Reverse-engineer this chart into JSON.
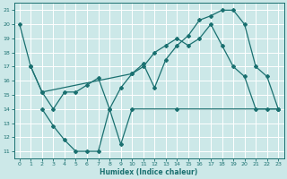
{
  "xlabel": "Humidex (Indice chaleur)",
  "bg_color": "#cce8e8",
  "grid_color": "#aacccc",
  "line_color": "#1a7070",
  "xlim": [
    -0.5,
    23.5
  ],
  "ylim": [
    10.5,
    21.5
  ],
  "xticks": [
    0,
    1,
    2,
    3,
    4,
    5,
    6,
    7,
    8,
    9,
    10,
    11,
    12,
    13,
    14,
    15,
    16,
    17,
    18,
    19,
    20,
    21,
    22,
    23
  ],
  "yticks": [
    11,
    12,
    13,
    14,
    15,
    16,
    17,
    18,
    19,
    20,
    21
  ],
  "line1_x": [
    0,
    1,
    2,
    10,
    11,
    12,
    13,
    14,
    15,
    16,
    17,
    18,
    19,
    20,
    21,
    22,
    23
  ],
  "line1_y": [
    20,
    17,
    15.2,
    16.5,
    17.2,
    15.5,
    17.5,
    18.5,
    19.2,
    20.3,
    20.6,
    21,
    21,
    20,
    17,
    16.3,
    14
  ],
  "line2_x": [
    1,
    2,
    3,
    4,
    5,
    6,
    7,
    8,
    9,
    10,
    11,
    12,
    13,
    14,
    15,
    16,
    17,
    18,
    19,
    20,
    21,
    22,
    23
  ],
  "line2_y": [
    17,
    15.2,
    14,
    15.2,
    15.2,
    15.7,
    16.2,
    14,
    15.5,
    16.5,
    17,
    18,
    18.5,
    19,
    18.5,
    19,
    20,
    18.5,
    17,
    16.3,
    14,
    14,
    14
  ],
  "line3_x": [
    2,
    3,
    4,
    5,
    6,
    7,
    8,
    9,
    10,
    14,
    23
  ],
  "line3_y": [
    14,
    12.8,
    11.8,
    11,
    11,
    11,
    14,
    11.5,
    14,
    14,
    14
  ]
}
